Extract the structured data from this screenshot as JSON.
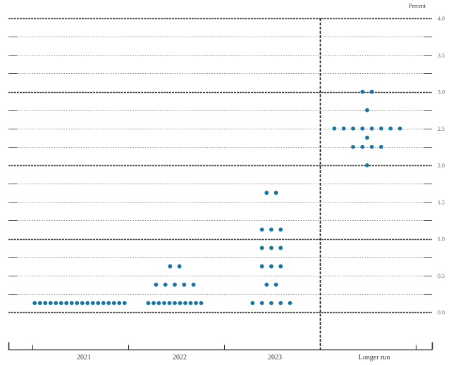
{
  "chart_data": {
    "type": "scatter",
    "title": "",
    "unit_label": "Percent",
    "xlabel": "",
    "ylabel": "Percent",
    "ylim": [
      0,
      4.0
    ],
    "y_ticks": [
      "0.0",
      "0.5",
      "1.0",
      "1.5",
      "2.0",
      "2.5",
      "3.0",
      "3.5",
      "4.0"
    ],
    "y_tick_values": [
      0,
      0.5,
      1.0,
      1.5,
      2.0,
      2.5,
      3.0,
      3.5,
      4.0
    ],
    "grid": true,
    "legend": null,
    "categories": [
      "2021",
      "2022",
      "2023",
      "Longer run"
    ],
    "series": [
      {
        "name": "2021",
        "points": [
          {
            "value": 0.125,
            "count": 18
          }
        ]
      },
      {
        "name": "2022",
        "points": [
          {
            "value": 0.125,
            "count": 11
          },
          {
            "value": 0.375,
            "count": 5
          },
          {
            "value": 0.625,
            "count": 2
          }
        ]
      },
      {
        "name": "2023",
        "points": [
          {
            "value": 0.125,
            "count": 5
          },
          {
            "value": 0.375,
            "count": 2
          },
          {
            "value": 0.625,
            "count": 3
          },
          {
            "value": 0.875,
            "count": 3
          },
          {
            "value": 1.125,
            "count": 3
          },
          {
            "value": 1.625,
            "count": 2
          }
        ]
      },
      {
        "name": "Longer run",
        "points": [
          {
            "value": 2.0,
            "count": 1
          },
          {
            "value": 2.25,
            "count": 4
          },
          {
            "value": 2.375,
            "count": 1
          },
          {
            "value": 2.5,
            "count": 8
          },
          {
            "value": 2.75,
            "count": 1
          },
          {
            "value": 3.0,
            "count": 2
          }
        ]
      }
    ],
    "annotations": [
      "Dashed vertical line separating 2023 and Longer run"
    ],
    "dot_color": "#1874a0"
  }
}
